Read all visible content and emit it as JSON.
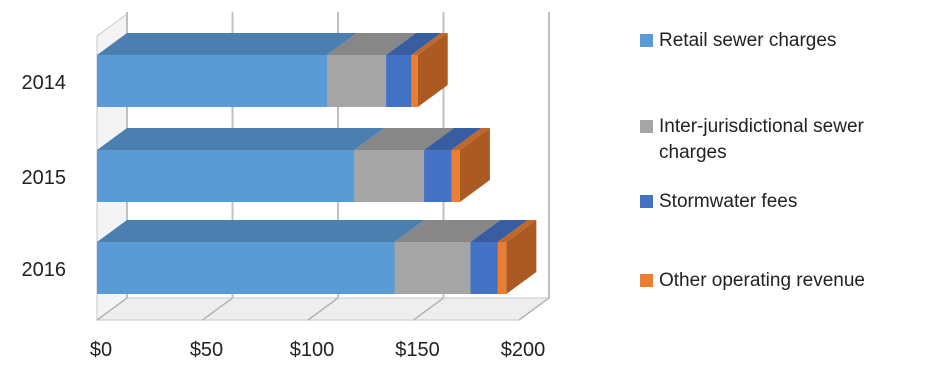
{
  "chart_data": {
    "type": "bar",
    "orientation": "horizontal",
    "stacked": true,
    "style": "3d",
    "categories": [
      "2014",
      "2015",
      "2016"
    ],
    "series": [
      {
        "name": "Retail sewer charges",
        "color": "#5B9BD5",
        "values": [
          109,
          122,
          141
        ]
      },
      {
        "name": "Inter-jurisdictional sewer charges",
        "color": "#A5A5A5",
        "values": [
          28,
          33,
          36
        ]
      },
      {
        "name": "Stormwater fees",
        "color": "#4472C4",
        "values": [
          12,
          13,
          13
        ]
      },
      {
        "name": "Other operating revenue",
        "color": "#ED7D31",
        "values": [
          3,
          4,
          4
        ]
      }
    ],
    "xlim": [
      0,
      200
    ],
    "xticks": [
      "$0",
      "$50",
      "$100",
      "$150",
      "$200"
    ],
    "grid": true,
    "legend": {
      "position": "right"
    }
  }
}
